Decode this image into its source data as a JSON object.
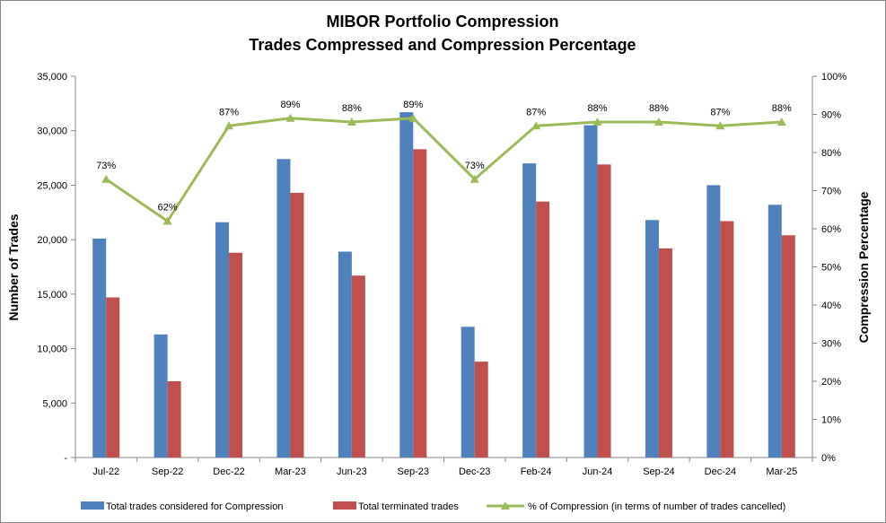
{
  "chart_data": {
    "type": "bar",
    "title": "MIBOR Portfolio Compression",
    "subtitle": "Trades Compressed and Compression Percentage",
    "ylabel": "Number of Trades",
    "y2label": "Compression Percentage",
    "categories": [
      "Jul-22",
      "Sep-22",
      "Dec-22",
      "Mar-23",
      "Jun-23",
      "Sep-23",
      "Dec-23",
      "Feb-24",
      "Jun-24",
      "Sep-24",
      "Dec-24",
      "Mar-25"
    ],
    "ylim": [
      0,
      35000
    ],
    "y2lim": [
      0,
      100
    ],
    "yticks": [
      "-",
      "5,000",
      "10,000",
      "15,000",
      "20,000",
      "25,000",
      "30,000",
      "35,000"
    ],
    "y2ticks": [
      "0%",
      "10%",
      "20%",
      "30%",
      "40%",
      "50%",
      "60%",
      "70%",
      "80%",
      "90%",
      "100%"
    ],
    "grid": false,
    "legend_position": "bottom",
    "series": [
      {
        "name": "Total trades considered for Compression",
        "kind": "bar",
        "color": "#4F81BD",
        "values": [
          20100,
          11300,
          21600,
          27400,
          18900,
          31700,
          12000,
          27000,
          30500,
          21800,
          25000,
          23200
        ]
      },
      {
        "name": "Total terminated trades",
        "kind": "bar",
        "color": "#C0504D",
        "values": [
          14700,
          7000,
          18800,
          24300,
          16700,
          28300,
          8800,
          23500,
          26900,
          19200,
          21700,
          20400
        ]
      },
      {
        "name": "% of Compression (in terms of number of trades cancelled)",
        "kind": "line",
        "axis": "y2",
        "color": "#9BBB59",
        "values": [
          73,
          62,
          87,
          89,
          88,
          89,
          73,
          87,
          88,
          88,
          87,
          88
        ],
        "labels": [
          "73%",
          "62%",
          "87%",
          "89%",
          "88%",
          "89%",
          "73%",
          "87%",
          "88%",
          "88%",
          "87%",
          "88%"
        ]
      }
    ]
  }
}
